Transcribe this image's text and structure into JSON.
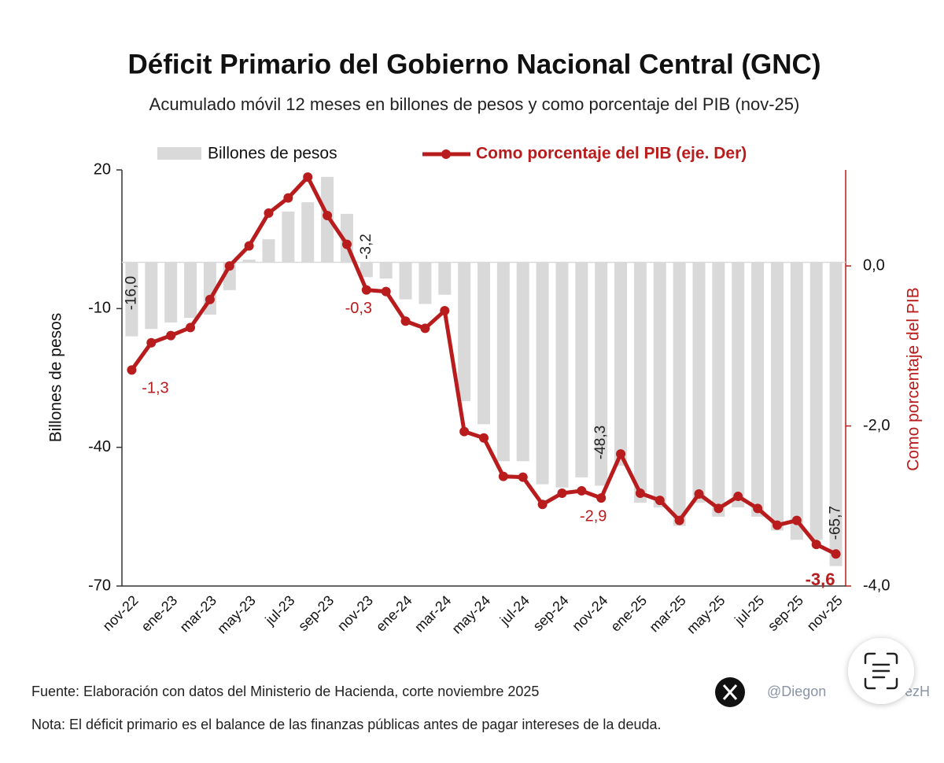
{
  "chart_data": {
    "type": "bar",
    "title": "Déficit Primario del Gobierno Nacional Central (GNC)",
    "subtitle": "Acumulado móvil 12 meses en billones de pesos y como porcentaje del PIB (nov-25)",
    "y_label": "Billones de pesos",
    "y2_label": "Como porcentaje del PIB",
    "categories": [
      "nov-22",
      null,
      "ene-23",
      null,
      "mar-23",
      null,
      "may-23",
      null,
      "jul-23",
      null,
      "sep-23",
      null,
      "nov-23",
      null,
      "ene-24",
      null,
      "mar-24",
      null,
      "may-24",
      null,
      "jul-24",
      null,
      "sep-24",
      null,
      "nov-24",
      null,
      "ene-25",
      null,
      "mar-25",
      null,
      "may-25",
      null,
      "jul-25",
      null,
      "sep-25",
      null,
      "nov-25"
    ],
    "series": [
      {
        "name": "Billones de pesos",
        "color": "#d9d9d9",
        "type": "bar",
        "values": [
          -16.0,
          -14.4,
          -13,
          -12,
          -11.3,
          -6,
          0.6,
          5,
          11,
          13,
          18.5,
          10.5,
          -3.2,
          -3.5,
          -8,
          -9,
          -7,
          -30,
          -35,
          -43,
          -43,
          -48,
          -48.7,
          -46.5,
          -48.3,
          -44,
          -52,
          -53,
          -57,
          -52,
          -55,
          -53,
          -55,
          -58,
          -60,
          -60,
          -65.7
        ],
        "value_labels": [
          "-16,0",
          null,
          null,
          null,
          null,
          null,
          null,
          null,
          null,
          null,
          null,
          null,
          "-3,2",
          null,
          null,
          null,
          null,
          null,
          null,
          null,
          null,
          null,
          null,
          null,
          "-48,3",
          null,
          null,
          null,
          null,
          null,
          null,
          null,
          null,
          null,
          null,
          null,
          "-65,7"
        ]
      },
      {
        "name": "Como porcentaje del PIB (eje. Der)",
        "color": "#b81c1c",
        "type": "line",
        "axis": "y2",
        "values": [
          -1.3,
          -0.96,
          -0.87,
          -0.77,
          -0.42,
          0,
          0.25,
          0.66,
          0.85,
          1.11,
          0.63,
          0.27,
          -0.3,
          -0.32,
          -0.69,
          -0.78,
          -0.56,
          -2.07,
          -2.15,
          -2.63,
          -2.64,
          -2.98,
          -2.84,
          -2.81,
          -2.9,
          -2.35,
          -2.84,
          -2.93,
          -3.18,
          -2.85,
          -3.03,
          -2.88,
          -3.03,
          -3.24,
          -3.18,
          -3.48,
          -3.6
        ],
        "value_labels": [
          "-1,3",
          null,
          null,
          null,
          null,
          null,
          null,
          null,
          null,
          null,
          null,
          null,
          "-0,3",
          null,
          null,
          null,
          null,
          null,
          null,
          null,
          null,
          null,
          null,
          null,
          "-2,9",
          null,
          null,
          null,
          null,
          null,
          null,
          null,
          null,
          null,
          null,
          null,
          "-3,6"
        ]
      }
    ],
    "ylim": [
      -70,
      20
    ],
    "yticks": [
      -70,
      -40,
      -10,
      20
    ],
    "y2lim": [
      -4,
      1.2
    ],
    "y2ticks": [
      {
        "value": -4,
        "label": "-4,0"
      },
      {
        "value": -2,
        "label": "-2,0"
      },
      {
        "value": 0,
        "label": "0,0"
      }
    ],
    "legend": "top",
    "source": "Fuente: Elaboración con datos del Ministerio de Hacienda, corte noviembre 2025",
    "note": "Nota: El déficit primario es el balance de las finanzas públicas antes de pagar intereses de la deuda.",
    "watermark": [
      "@Diegon",
      "ezH"
    ]
  }
}
